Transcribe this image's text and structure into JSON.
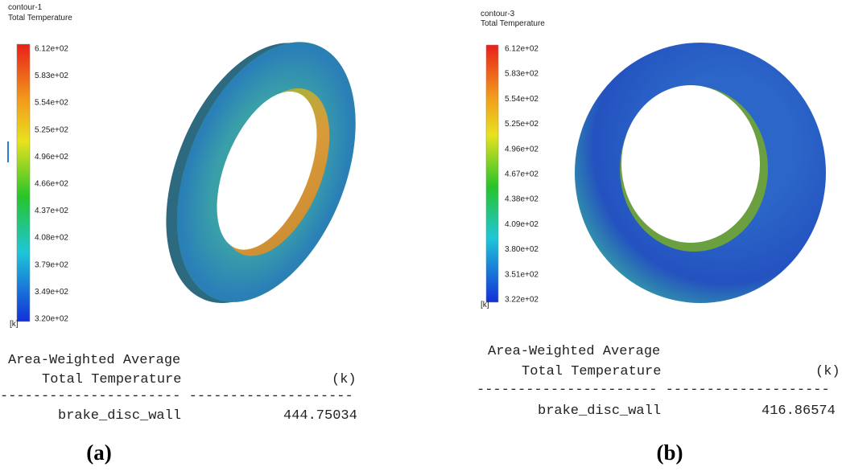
{
  "panels": [
    {
      "contour": "contour-1",
      "variable": "Total Temperature",
      "colorbar_ticks": [
        "6.12e+02",
        "5.83e+02",
        "5.54e+02",
        "5.25e+02",
        "4.96e+02",
        "4.66e+02",
        "4.37e+02",
        "4.08e+02",
        "3.79e+02",
        "3.49e+02",
        "3.20e+02"
      ],
      "unit": "[k]",
      "report": {
        "header1": "Area-Weighted Average",
        "header2": "Total Temperature",
        "unit": "(k)",
        "separator": "---------------------- --------------------",
        "row_name": "brake_disc_wall",
        "row_value": "444.75034"
      },
      "label": "(a)"
    },
    {
      "contour": "contour-3",
      "variable": "Total Temperature",
      "colorbar_ticks": [
        "6.12e+02",
        "5.83e+02",
        "5.54e+02",
        "5.25e+02",
        "4.96e+02",
        "4.67e+02",
        "4.38e+02",
        "4.09e+02",
        "3.80e+02",
        "3.51e+02",
        "3.22e+02"
      ],
      "unit": "[k]",
      "report": {
        "header1": "Area-Weighted Average",
        "header2": "Total Temperature",
        "unit": "(k)",
        "separator": "---------------------- --------------------",
        "row_name": "brake_disc_wall",
        "row_value": "416.86574"
      },
      "label": "(b)"
    }
  ]
}
